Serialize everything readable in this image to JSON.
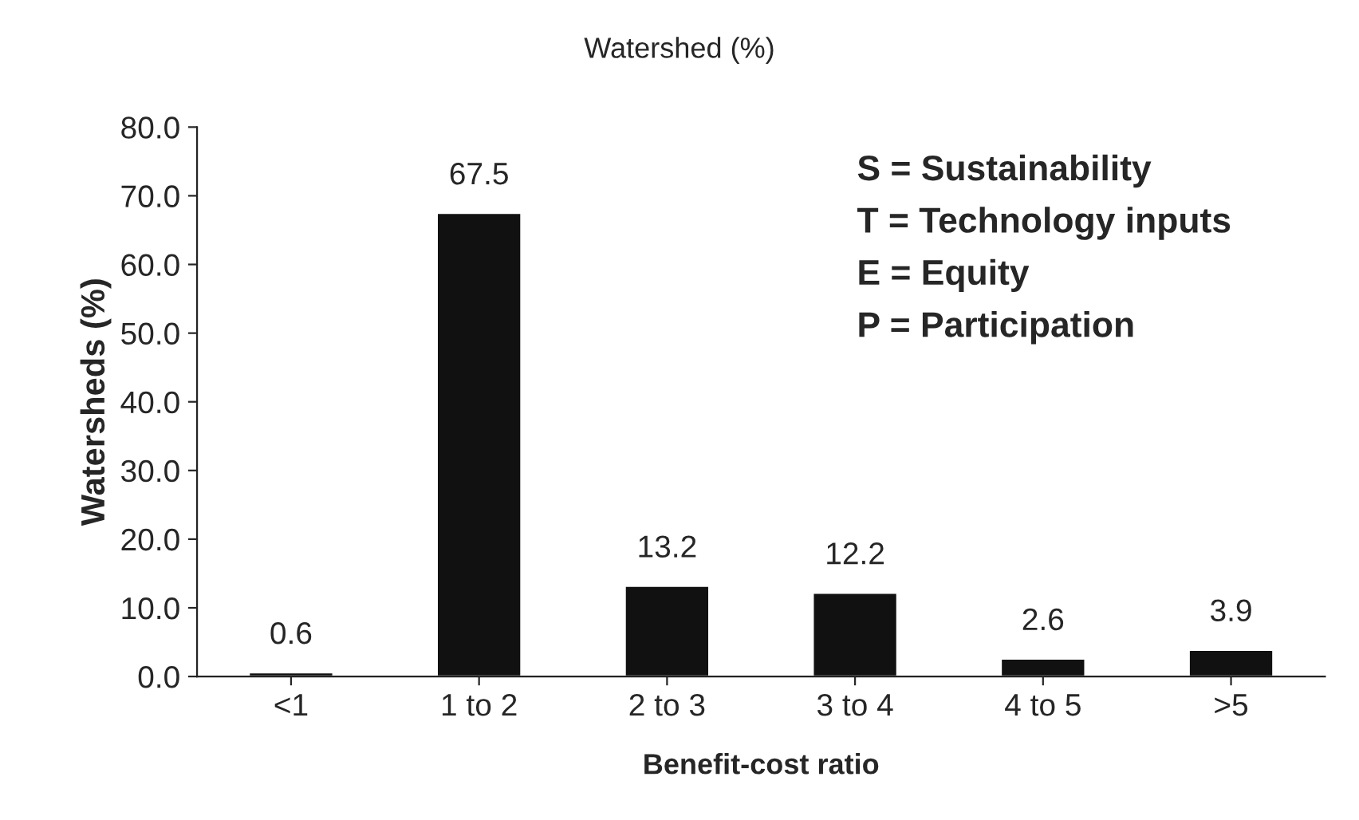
{
  "chart_data": {
    "type": "bar",
    "title": "Watershed (%)",
    "xlabel": "Benefit-cost ratio",
    "ylabel": "Watersheds (%)",
    "categories": [
      "<1",
      "1 to 2",
      "2 to 3",
      "3 to 4",
      "4 to 5",
      ">5"
    ],
    "values": [
      0.6,
      67.5,
      13.2,
      12.2,
      2.6,
      3.9
    ],
    "color": "#111111",
    "ylim": [
      0,
      80
    ],
    "yticks": [
      {
        "value": 0,
        "label": "0.0"
      },
      {
        "value": 10,
        "label": "10.0"
      },
      {
        "value": 20,
        "label": "20.0"
      },
      {
        "value": 30,
        "label": "30.0"
      },
      {
        "value": 40,
        "label": "40.0"
      },
      {
        "value": 50,
        "label": "50.0"
      },
      {
        "value": 60,
        "label": "60.0"
      },
      {
        "value": 70,
        "label": "70.0"
      },
      {
        "value": 80,
        "label": "80.0"
      }
    ],
    "data_labels": true,
    "grid": false,
    "annotations": [
      "S = Sustainability",
      "T = Technology inputs",
      "E = Equity",
      "P = Participation"
    ]
  }
}
